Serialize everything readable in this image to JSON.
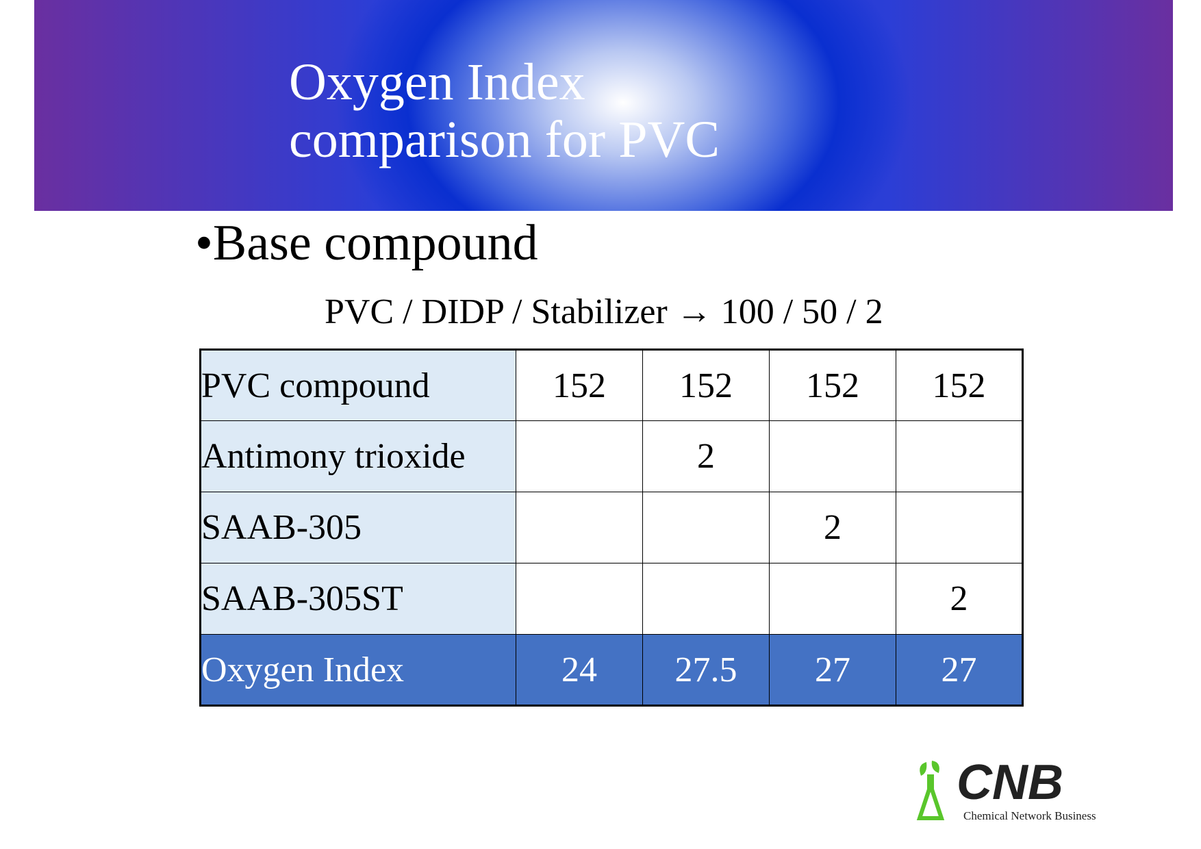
{
  "header": {
    "title_lines": [
      "Oxygen Index",
      "comparison for PVC"
    ]
  },
  "bullet": "•Base compound",
  "formula": "PVC / DIDP / Stabilizer → 100 / 50 / 2",
  "table": {
    "rows": [
      [
        "PVC compound",
        "152",
        "152",
        "152",
        "152"
      ],
      [
        "Antimony trioxide",
        null,
        "2",
        null,
        null
      ],
      [
        "SAAB-305",
        null,
        null,
        "2",
        null
      ],
      [
        "SAAB-305ST",
        null,
        null,
        null,
        "2"
      ],
      [
        "Oxygen Index",
        "24",
        "27.5",
        "27",
        "27"
      ]
    ]
  },
  "logo": {
    "mark": "CNB",
    "tagline": "Chemical Network Business"
  }
}
